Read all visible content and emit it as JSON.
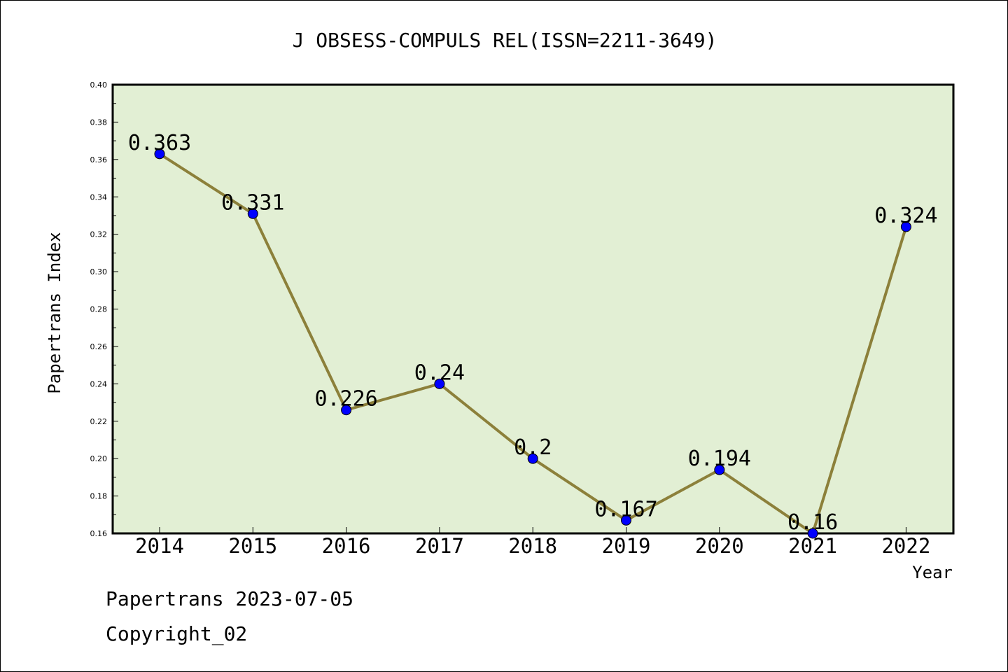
{
  "colors": {
    "plot_bg": "#e2efd4",
    "line": "#8c803a",
    "marker": "#0000ff",
    "axis": "#000000",
    "text": "#000000"
  },
  "footer": {
    "source": "Papertrans 2023-07-05",
    "copyright": "Copyright_02"
  },
  "chart_data": {
    "type": "line",
    "title": "J OBSESS-COMPULS REL(ISSN=2211-3649)",
    "xlabel": "Year",
    "ylabel": "Papertrans Index",
    "categories": [
      "2014",
      "2015",
      "2016",
      "2017",
      "2018",
      "2019",
      "2020",
      "2021",
      "2022"
    ],
    "values": [
      0.363,
      0.331,
      0.226,
      0.24,
      0.2,
      0.167,
      0.194,
      0.16,
      0.324
    ],
    "data_labels": [
      "0.363",
      "0.331",
      "0.226",
      "0.24",
      "0.2",
      "0.167",
      "0.194",
      "0.16",
      "0.324"
    ],
    "ylim": [
      0.16,
      0.4
    ],
    "yticks": [
      "0.16",
      "0.18",
      "0.20",
      "0.22",
      "0.24",
      "0.26",
      "0.28",
      "0.30",
      "0.32",
      "0.34",
      "0.36",
      "0.38",
      "0.40"
    ],
    "grid": false,
    "legend": "none",
    "marker": "circle"
  }
}
